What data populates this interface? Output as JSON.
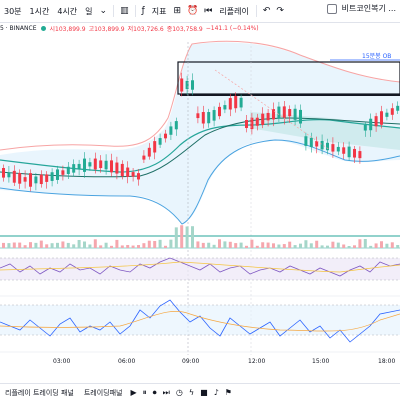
{
  "toolbar": {
    "timeframes": [
      "30분",
      "1시간",
      "4시간",
      "일"
    ],
    "indicators_label": "지표",
    "replay_label": "리플레이",
    "compare_label": "비트코인복기 ..."
  },
  "legend": {
    "symbol": "5 · BINANCE",
    "open": "시103,899.9",
    "high": "고103,899.9",
    "low": "저103,726.6",
    "close": "종103,758.9",
    "change": "−141.1 (−0.14%)"
  },
  "chart": {
    "box_label": "15분봉 OB",
    "x_labels": [
      "03:00",
      "06:00",
      "09:00",
      "12:00",
      "15:00",
      "18:00"
    ],
    "colors": {
      "up": "#22ab94",
      "down": "#f23645",
      "band_upper": "#f7a4a4",
      "band_lower": "#4aa3e0",
      "ma": "#26a69a",
      "cloud": "#b2dfdb"
    }
  },
  "bottombar": {
    "tabs": [
      "리플레이 트레이딩 패널",
      "트레이딩패널"
    ],
    "icons": [
      "play-icon",
      "pause-icon",
      "record-icon",
      "step-icon",
      "clock-icon",
      "lightning-icon",
      "stop-icon",
      "sound-icon",
      "flag-icon"
    ]
  }
}
